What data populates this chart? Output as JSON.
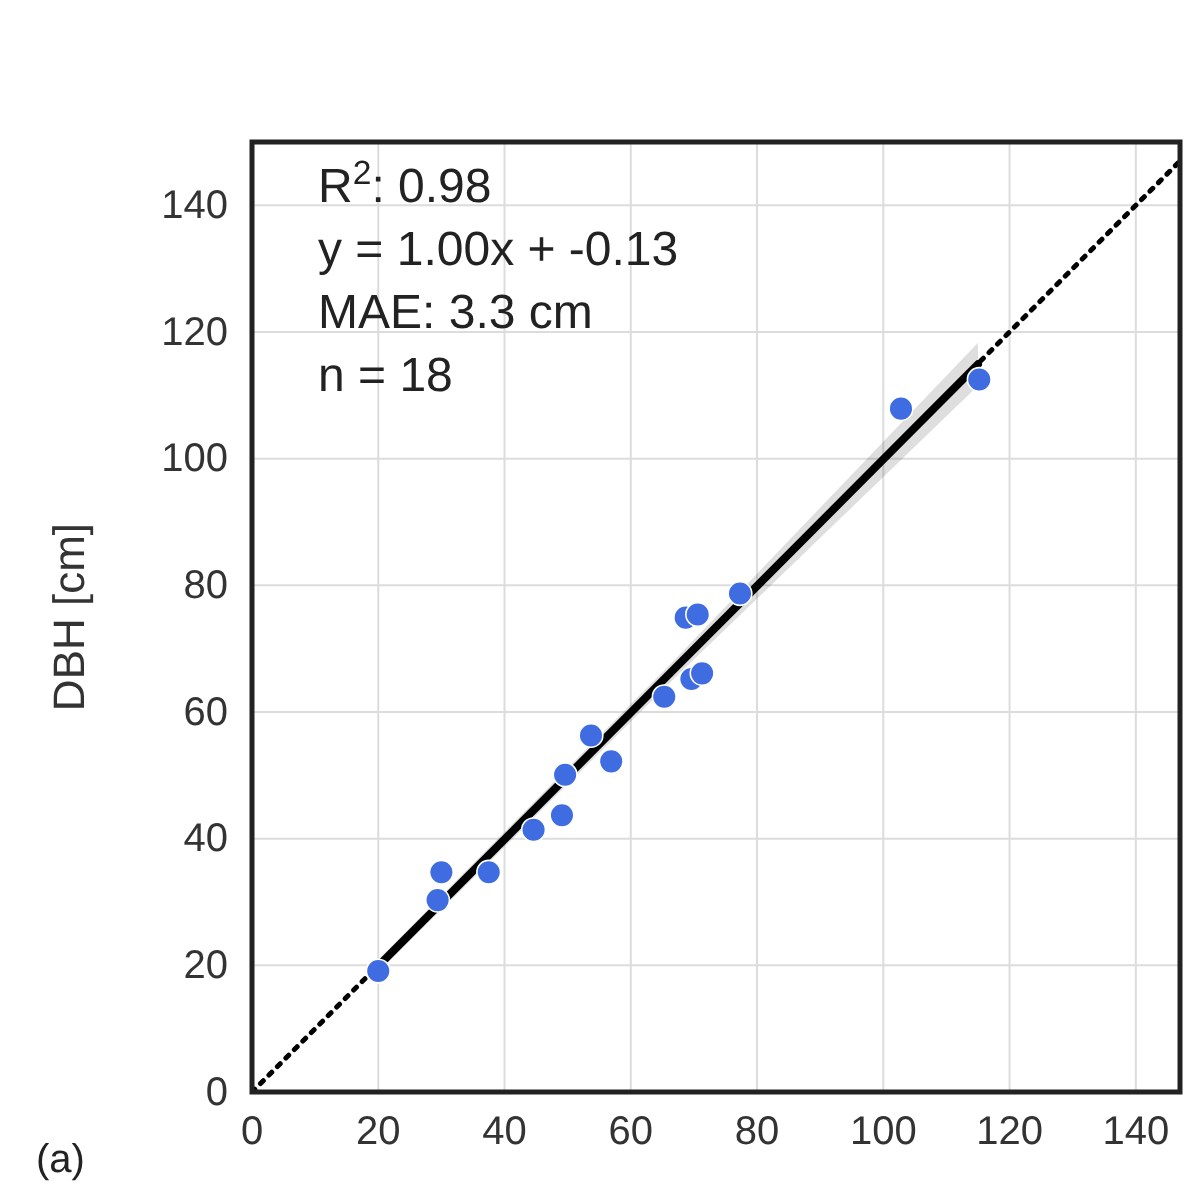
{
  "chart_data": {
    "type": "scatter",
    "ylabel": "DBH [cm]",
    "xlim": [
      0,
      147
    ],
    "ylim": [
      0,
      150
    ],
    "xticks": [
      0,
      20,
      40,
      60,
      80,
      100,
      120,
      140
    ],
    "yticks": [
      0,
      20,
      40,
      60,
      80,
      100,
      120,
      140
    ],
    "grid": true,
    "series": [
      {
        "type": "line",
        "x": [
          0,
          147
        ],
        "values": [
          0,
          147
        ],
        "color": "#000000",
        "line_style": "dotted",
        "marker": "none"
      },
      {
        "type": "line",
        "x": [
          20,
          67,
          115
        ],
        "values": [
          19.9,
          66.9,
          114.9
        ],
        "lower": [
          18.9,
          65.4,
          111.5
        ],
        "upper": [
          20.9,
          68.3,
          118.3
        ],
        "color": "#000000",
        "line_style": "solid",
        "marker": "none"
      },
      {
        "x": [
          20.0,
          29.4,
          30.0,
          37.5,
          44.6,
          49.1,
          49.6,
          53.7,
          56.9,
          65.3,
          68.7,
          70.6,
          69.6,
          71.3,
          77.3,
          102.8,
          115.2
        ],
        "values": [
          19.1,
          30.3,
          34.7,
          34.7,
          41.4,
          43.7,
          50.1,
          56.3,
          52.2,
          62.4,
          74.9,
          75.4,
          65.2,
          66.1,
          78.7,
          107.9,
          112.5
        ],
        "color": "#3f6ce0",
        "marker": "circle"
      }
    ],
    "annotations": [
      "R$^{2}$: 0.98",
      "y = 1.00x + -0.13",
      "MAE: 3.3 cm",
      "n = 18",
      "(a)"
    ]
  }
}
